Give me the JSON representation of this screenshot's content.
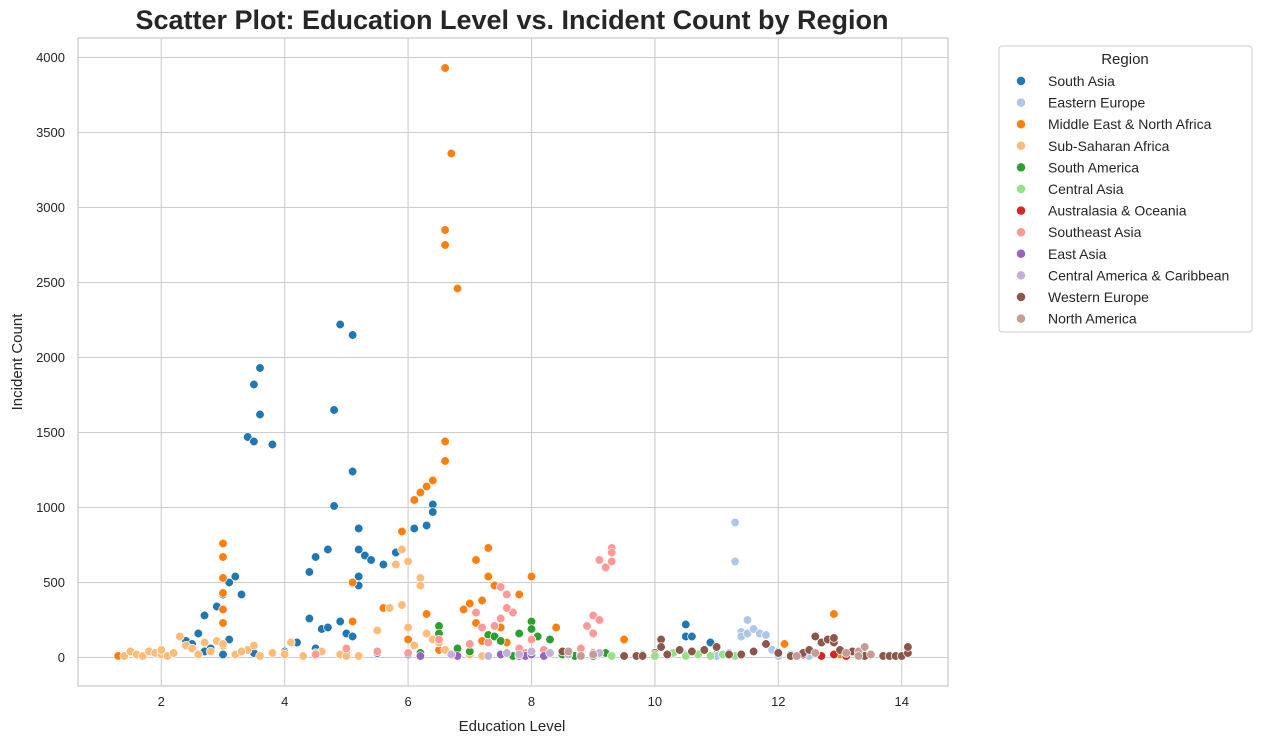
{
  "chart_data": {
    "type": "scatter",
    "title": "Scatter Plot: Education Level vs. Incident Count by Region",
    "xlabel": "Education Level",
    "ylabel": "Incident Count",
    "xlim": [
      0.65,
      14.75
    ],
    "ylim": [
      -190,
      4130
    ],
    "xticks": [
      2,
      4,
      6,
      8,
      10,
      12,
      14
    ],
    "yticks": [
      0,
      500,
      1000,
      1500,
      2000,
      2500,
      3000,
      3500,
      4000
    ],
    "grid": true,
    "legend": {
      "title": "Region",
      "placement": "outside-right"
    },
    "series": [
      {
        "name": "South Asia",
        "color": "#1f77b4",
        "points": [
          [
            2.4,
            110
          ],
          [
            2.5,
            90
          ],
          [
            2.6,
            160
          ],
          [
            2.7,
            280
          ],
          [
            2.8,
            60
          ],
          [
            2.9,
            340
          ],
          [
            3.0,
            420
          ],
          [
            3.1,
            120
          ],
          [
            3.1,
            500
          ],
          [
            3.2,
            540
          ],
          [
            3.3,
            420
          ],
          [
            3.4,
            1470
          ],
          [
            3.5,
            1440
          ],
          [
            3.5,
            1820
          ],
          [
            3.6,
            1620
          ],
          [
            3.6,
            1930
          ],
          [
            3.8,
            1420
          ],
          [
            4.2,
            100
          ],
          [
            4.4,
            570
          ],
          [
            4.4,
            260
          ],
          [
            4.5,
            670
          ],
          [
            4.6,
            190
          ],
          [
            4.7,
            720
          ],
          [
            4.7,
            200
          ],
          [
            4.8,
            1650
          ],
          [
            4.8,
            1010
          ],
          [
            4.9,
            2220
          ],
          [
            4.9,
            240
          ],
          [
            5.0,
            160
          ],
          [
            5.1,
            2150
          ],
          [
            5.1,
            1240
          ],
          [
            5.1,
            140
          ],
          [
            5.2,
            860
          ],
          [
            5.2,
            720
          ],
          [
            5.2,
            540
          ],
          [
            5.2,
            480
          ],
          [
            5.3,
            680
          ],
          [
            5.4,
            650
          ],
          [
            5.6,
            620
          ],
          [
            5.8,
            700
          ],
          [
            6.1,
            860
          ],
          [
            6.3,
            880
          ],
          [
            6.4,
            1020
          ],
          [
            6.4,
            970
          ],
          [
            10.5,
            140
          ],
          [
            10.5,
            220
          ],
          [
            10.6,
            140
          ],
          [
            10.9,
            100
          ],
          [
            2.7,
            40
          ],
          [
            3.0,
            20
          ],
          [
            3.5,
            30
          ],
          [
            4.0,
            40
          ],
          [
            4.5,
            60
          ],
          [
            5.0,
            60
          ],
          [
            5.5,
            30
          ],
          [
            6.0,
            20
          ],
          [
            8.0,
            20
          ],
          [
            9.0,
            20
          ],
          [
            10.0,
            30
          ],
          [
            11.0,
            20
          ]
        ]
      },
      {
        "name": "Eastern Europe",
        "color": "#aec7e8",
        "points": [
          [
            11.3,
            900
          ],
          [
            11.3,
            640
          ],
          [
            11.4,
            170
          ],
          [
            11.4,
            140
          ],
          [
            11.5,
            160
          ],
          [
            11.5,
            250
          ],
          [
            11.6,
            190
          ],
          [
            11.7,
            160
          ],
          [
            11.8,
            150
          ],
          [
            11.9,
            50
          ],
          [
            12.0,
            40
          ],
          [
            12.0,
            10
          ],
          [
            11.2,
            30
          ],
          [
            11.0,
            10
          ],
          [
            10.5,
            20
          ],
          [
            12.2,
            20
          ],
          [
            12.5,
            10
          ]
        ]
      },
      {
        "name": "Middle East & North Africa",
        "color": "#ff7f0e",
        "points": [
          [
            1.3,
            10
          ],
          [
            3.0,
            760
          ],
          [
            3.0,
            670
          ],
          [
            3.0,
            530
          ],
          [
            3.0,
            430
          ],
          [
            3.0,
            320
          ],
          [
            3.0,
            230
          ],
          [
            3.0,
            80
          ],
          [
            5.1,
            240
          ],
          [
            5.1,
            500
          ],
          [
            5.6,
            330
          ],
          [
            5.8,
            620
          ],
          [
            5.9,
            840
          ],
          [
            6.1,
            1050
          ],
          [
            6.2,
            1100
          ],
          [
            6.3,
            1140
          ],
          [
            6.4,
            1180
          ],
          [
            6.6,
            3930
          ],
          [
            6.7,
            3360
          ],
          [
            6.6,
            2850
          ],
          [
            6.6,
            2750
          ],
          [
            6.8,
            2460
          ],
          [
            6.6,
            1440
          ],
          [
            6.6,
            1310
          ],
          [
            6.3,
            290
          ],
          [
            6.9,
            320
          ],
          [
            7.0,
            360
          ],
          [
            7.1,
            650
          ],
          [
            7.2,
            380
          ],
          [
            7.3,
            730
          ],
          [
            7.3,
            540
          ],
          [
            7.4,
            480
          ],
          [
            7.1,
            230
          ],
          [
            7.5,
            200
          ],
          [
            7.8,
            420
          ],
          [
            8.0,
            540
          ],
          [
            8.4,
            200
          ],
          [
            9.5,
            120
          ],
          [
            12.1,
            90
          ],
          [
            12.9,
            290
          ],
          [
            7.2,
            110
          ],
          [
            7.6,
            100
          ],
          [
            6.5,
            50
          ],
          [
            7.0,
            20
          ],
          [
            8.0,
            20
          ],
          [
            9.0,
            30
          ],
          [
            10.0,
            20
          ],
          [
            12.5,
            50
          ],
          [
            13.0,
            20
          ],
          [
            6.0,
            120
          ],
          [
            4.0,
            30
          ],
          [
            2.5,
            60
          ],
          [
            5.0,
            30
          ]
        ]
      },
      {
        "name": "Sub-Saharan Africa",
        "color": "#ffbb78",
        "points": [
          [
            1.4,
            10
          ],
          [
            1.5,
            40
          ],
          [
            1.6,
            20
          ],
          [
            1.7,
            10
          ],
          [
            1.8,
            40
          ],
          [
            1.9,
            30
          ],
          [
            2.0,
            20
          ],
          [
            2.1,
            10
          ],
          [
            2.2,
            30
          ],
          [
            2.3,
            140
          ],
          [
            2.4,
            80
          ],
          [
            2.5,
            60
          ],
          [
            2.6,
            20
          ],
          [
            2.7,
            100
          ],
          [
            2.8,
            40
          ],
          [
            2.9,
            110
          ],
          [
            3.0,
            90
          ],
          [
            3.2,
            20
          ],
          [
            3.4,
            50
          ],
          [
            3.5,
            80
          ],
          [
            3.6,
            10
          ],
          [
            3.8,
            30
          ],
          [
            4.0,
            20
          ],
          [
            4.1,
            100
          ],
          [
            4.3,
            10
          ],
          [
            4.6,
            40
          ],
          [
            4.9,
            20
          ],
          [
            5.2,
            10
          ],
          [
            5.5,
            180
          ],
          [
            5.7,
            330
          ],
          [
            5.8,
            620
          ],
          [
            5.9,
            720
          ],
          [
            5.9,
            350
          ],
          [
            6.0,
            640
          ],
          [
            6.0,
            200
          ],
          [
            6.2,
            530
          ],
          [
            6.2,
            480
          ],
          [
            6.3,
            160
          ],
          [
            6.4,
            120
          ],
          [
            6.5,
            100
          ],
          [
            6.6,
            50
          ],
          [
            6.8,
            30
          ],
          [
            7.0,
            20
          ],
          [
            7.2,
            10
          ],
          [
            5.0,
            10
          ],
          [
            4.5,
            30
          ],
          [
            3.3,
            40
          ],
          [
            2.0,
            50
          ],
          [
            6.1,
            80
          ]
        ]
      },
      {
        "name": "South America",
        "color": "#2ca02c",
        "points": [
          [
            6.5,
            210
          ],
          [
            6.5,
            160
          ],
          [
            7.3,
            150
          ],
          [
            7.4,
            140
          ],
          [
            7.5,
            110
          ],
          [
            7.8,
            160
          ],
          [
            8.0,
            240
          ],
          [
            8.0,
            190
          ],
          [
            8.1,
            140
          ],
          [
            8.3,
            120
          ],
          [
            6.8,
            60
          ],
          [
            7.0,
            40
          ],
          [
            7.5,
            20
          ],
          [
            8.5,
            20
          ],
          [
            9.0,
            10
          ],
          [
            9.2,
            30
          ],
          [
            10.2,
            20
          ],
          [
            8.7,
            10
          ],
          [
            6.2,
            30
          ],
          [
            7.7,
            10
          ]
        ]
      },
      {
        "name": "Central Asia",
        "color": "#98df8a",
        "points": [
          [
            9.5,
            10
          ],
          [
            9.8,
            20
          ],
          [
            10.0,
            10
          ],
          [
            10.3,
            30
          ],
          [
            10.5,
            10
          ],
          [
            10.7,
            20
          ],
          [
            10.9,
            10
          ],
          [
            11.1,
            20
          ],
          [
            11.3,
            10
          ],
          [
            8.8,
            20
          ],
          [
            9.3,
            10
          ]
        ]
      },
      {
        "name": "Australasia & Oceania",
        "color": "#d62728",
        "points": [
          [
            12.7,
            10
          ],
          [
            12.9,
            20
          ],
          [
            13.1,
            10
          ],
          [
            12.4,
            20
          ]
        ]
      },
      {
        "name": "Southeast Asia",
        "color": "#ff9896",
        "points": [
          [
            9.1,
            650
          ],
          [
            9.2,
            600
          ],
          [
            9.3,
            730
          ],
          [
            9.3,
            700
          ],
          [
            9.3,
            640
          ],
          [
            9.0,
            280
          ],
          [
            9.1,
            250
          ],
          [
            8.9,
            210
          ],
          [
            9.0,
            160
          ],
          [
            7.5,
            470
          ],
          [
            7.6,
            420
          ],
          [
            7.7,
            300
          ],
          [
            7.6,
            330
          ],
          [
            7.5,
            260
          ],
          [
            7.4,
            210
          ],
          [
            7.2,
            200
          ],
          [
            7.1,
            300
          ],
          [
            7.0,
            90
          ],
          [
            7.8,
            60
          ],
          [
            8.0,
            120
          ],
          [
            8.2,
            50
          ],
          [
            8.6,
            40
          ],
          [
            8.8,
            60
          ],
          [
            9.0,
            30
          ],
          [
            5.0,
            60
          ],
          [
            5.5,
            40
          ],
          [
            6.0,
            30
          ],
          [
            4.5,
            20
          ],
          [
            6.5,
            120
          ],
          [
            7.3,
            100
          ],
          [
            7.9,
            30
          ]
        ]
      },
      {
        "name": "East Asia",
        "color": "#9467bd",
        "points": [
          [
            6.8,
            10
          ],
          [
            7.5,
            20
          ],
          [
            7.8,
            10
          ],
          [
            7.9,
            10
          ],
          [
            8.0,
            20
          ],
          [
            8.2,
            10
          ],
          [
            6.2,
            10
          ]
        ]
      },
      {
        "name": "Central America & Caribbean",
        "color": "#c5b0d5",
        "points": [
          [
            7.6,
            30
          ],
          [
            7.8,
            20
          ],
          [
            8.0,
            40
          ],
          [
            8.3,
            30
          ],
          [
            8.6,
            20
          ],
          [
            8.8,
            10
          ],
          [
            9.1,
            30
          ],
          [
            6.7,
            20
          ],
          [
            7.3,
            10
          ]
        ]
      },
      {
        "name": "Western Europe",
        "color": "#8c564b",
        "points": [
          [
            8.5,
            40
          ],
          [
            9.5,
            10
          ],
          [
            9.7,
            10
          ],
          [
            9.8,
            10
          ],
          [
            10.1,
            120
          ],
          [
            10.1,
            70
          ],
          [
            10.2,
            20
          ],
          [
            10.4,
            50
          ],
          [
            10.6,
            40
          ],
          [
            10.8,
            50
          ],
          [
            11.0,
            70
          ],
          [
            11.4,
            20
          ],
          [
            11.6,
            40
          ],
          [
            11.8,
            90
          ],
          [
            12.0,
            30
          ],
          [
            12.2,
            10
          ],
          [
            12.4,
            30
          ],
          [
            12.6,
            140
          ],
          [
            12.7,
            100
          ],
          [
            12.8,
            120
          ],
          [
            12.9,
            100
          ],
          [
            13.0,
            50
          ],
          [
            13.2,
            40
          ],
          [
            13.4,
            10
          ],
          [
            13.7,
            10
          ],
          [
            13.8,
            10
          ],
          [
            13.9,
            10
          ],
          [
            14.0,
            10
          ],
          [
            14.1,
            30
          ],
          [
            14.1,
            70
          ],
          [
            12.9,
            130
          ],
          [
            12.5,
            50
          ],
          [
            11.2,
            20
          ]
        ]
      },
      {
        "name": "North America",
        "color": "#c49c94",
        "points": [
          [
            13.3,
            40
          ],
          [
            13.4,
            70
          ],
          [
            13.3,
            10
          ],
          [
            13.5,
            20
          ],
          [
            13.1,
            30
          ],
          [
            12.6,
            30
          ],
          [
            12.3,
            10
          ],
          [
            8.6,
            40
          ],
          [
            9.0,
            20
          ],
          [
            8.8,
            10
          ]
        ]
      }
    ]
  }
}
